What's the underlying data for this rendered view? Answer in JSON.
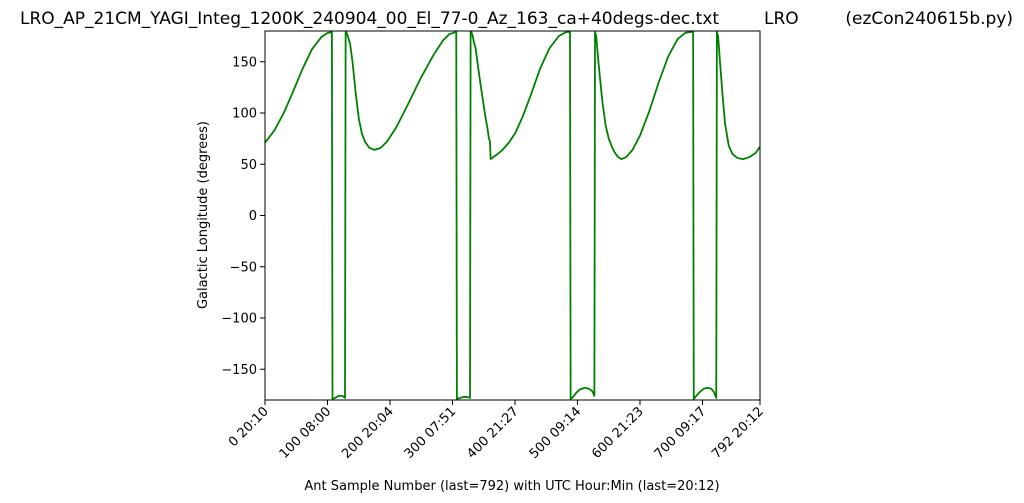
{
  "header": {
    "file_name": "LRO_AP_21CM_YAGI_Integ_1200K_240904_00_El_77-0_Az_163_ca+40degs-dec.txt",
    "site": "LRO",
    "program": "(ezCon240615b.py)"
  },
  "chart_data": {
    "type": "line",
    "title": "",
    "xlabel": "Ant Sample Number (last=792) with UTC Hour:Min (last=20:12)",
    "ylabel": "Galactic Longitude (degrees)",
    "xlim": [
      0,
      792
    ],
    "ylim": [
      -180,
      180
    ],
    "grid": false,
    "line_color": "#008000",
    "x_ticks": [
      {
        "value": 0,
        "label": "0  20:10"
      },
      {
        "value": 100,
        "label": "100  08:00"
      },
      {
        "value": 200,
        "label": "200  20:04"
      },
      {
        "value": 300,
        "label": "300  07:51"
      },
      {
        "value": 400,
        "label": "400  21:27"
      },
      {
        "value": 500,
        "label": "500  09:14"
      },
      {
        "value": 600,
        "label": "600  21:23"
      },
      {
        "value": 700,
        "label": "700  09:17"
      },
      {
        "value": 792,
        "label": "792  20:12"
      }
    ],
    "y_ticks": [
      {
        "value": 150,
        "label": "150"
      },
      {
        "value": 100,
        "label": "100"
      },
      {
        "value": 50,
        "label": "50"
      },
      {
        "value": 0,
        "label": "0"
      },
      {
        "value": -50,
        "label": "−50"
      },
      {
        "value": -100,
        "label": "−100"
      },
      {
        "value": -150,
        "label": "−150"
      }
    ],
    "series": [
      {
        "x": [
          0,
          15,
          30,
          45,
          60,
          75,
          90,
          100,
          107,
          108,
          112,
          118,
          124,
          128,
          129,
          130,
          132,
          134,
          136,
          140,
          145,
          150,
          155,
          160,
          167,
          175,
          185,
          195,
          210,
          230,
          250,
          270,
          285,
          295,
          306,
          307,
          312,
          318,
          323,
          328,
          329,
          330,
          332,
          334,
          337,
          342,
          348,
          353,
          356,
          358,
          360,
          361,
          370,
          380,
          390,
          400,
          412,
          425,
          440,
          455,
          470,
          482,
          488,
          489,
          493,
          498,
          503,
          507,
          512,
          518,
          523,
          525,
          527,
          528,
          530,
          532,
          535,
          540,
          545,
          550,
          555,
          560,
          565,
          570,
          578,
          588,
          600,
          615,
          630,
          645,
          660,
          672,
          680,
          685,
          686,
          690,
          696,
          702,
          708,
          714,
          718,
          720,
          722,
          723,
          725,
          728,
          732,
          736,
          742,
          748,
          756,
          765,
          775,
          785,
          792
        ],
        "y": [
          71,
          83,
          100,
          121,
          143,
          162,
          174,
          178,
          179,
          -179,
          -178,
          -176,
          -176,
          -178,
          179,
          179,
          176,
          172,
          168,
          150,
          120,
          95,
          80,
          72,
          66,
          64,
          66,
          72,
          86,
          110,
          135,
          157,
          171,
          177,
          179,
          -179,
          -178,
          -177,
          -177,
          -178,
          179,
          179,
          176,
          170,
          163,
          140,
          115,
          95,
          85,
          76,
          72,
          55,
          59,
          64,
          71,
          80,
          96,
          117,
          143,
          163,
          175,
          179,
          179,
          -179,
          -177,
          -173,
          -170,
          -169,
          -168,
          -169,
          -171,
          -173,
          -176,
          179,
          175,
          160,
          140,
          110,
          88,
          75,
          67,
          61,
          57,
          55,
          57,
          64,
          78,
          102,
          130,
          155,
          172,
          178,
          179,
          179,
          -179,
          -176,
          -172,
          -169,
          -168,
          -169,
          -172,
          -175,
          -178,
          179,
          175,
          150,
          118,
          90,
          68,
          60,
          56,
          55,
          57,
          61,
          67
        ]
      }
    ]
  }
}
